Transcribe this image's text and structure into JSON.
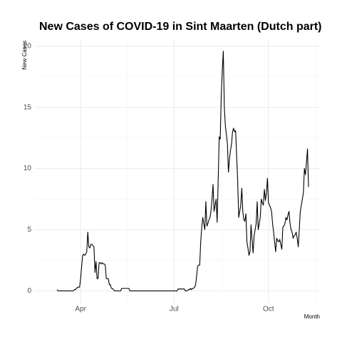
{
  "chart_data": {
    "type": "line",
    "title": "New Cases of COVID-19 in Sint Maarten (Dutch part)",
    "y_label": "New Cases",
    "x_label": "Month",
    "categories": [
      null,
      null,
      null,
      null,
      null,
      null,
      null,
      null,
      null,
      null,
      null,
      null,
      null,
      null,
      null,
      null,
      null,
      null,
      null,
      null,
      null,
      null,
      null,
      "Apr",
      null,
      null,
      null,
      null,
      null,
      null,
      null,
      null,
      null,
      null,
      null,
      null,
      null,
      null,
      null,
      null,
      null,
      null,
      null,
      null,
      null,
      null,
      null,
      null,
      null,
      null,
      null,
      null,
      null,
      null,
      null,
      null,
      null,
      null,
      null,
      null,
      null,
      null,
      null,
      null,
      null,
      null,
      null,
      null,
      null,
      null,
      null,
      null,
      null,
      null,
      null,
      null,
      null,
      null,
      null,
      null,
      null,
      null,
      null,
      null,
      null,
      null,
      null,
      null,
      null,
      null,
      null,
      null,
      null,
      null,
      null,
      null,
      null,
      null,
      null,
      null,
      null,
      null,
      null,
      null,
      null,
      null,
      null,
      null,
      null,
      null,
      null,
      null,
      null,
      null,
      "Jul",
      null,
      null,
      null,
      null,
      null,
      null,
      null,
      null,
      null,
      null,
      null,
      null,
      null,
      null,
      null,
      null,
      null,
      null,
      null,
      null,
      null,
      null,
      null,
      null,
      null,
      null,
      null,
      null,
      null,
      null,
      null,
      null,
      null,
      null,
      null,
      null,
      null,
      null,
      null,
      null,
      null,
      null,
      null,
      null,
      null,
      null,
      null,
      null,
      null,
      null,
      null,
      null,
      null,
      null,
      null,
      null,
      null,
      null,
      null,
      null,
      null,
      null,
      null,
      null,
      null,
      null,
      null,
      null,
      null,
      null,
      null,
      null,
      null,
      null,
      null,
      null,
      null,
      null,
      null,
      null,
      null,
      null,
      null,
      null,
      null,
      null,
      null,
      null,
      null,
      null,
      null,
      "Oct",
      null,
      null,
      null,
      null,
      null,
      null,
      null,
      null,
      null,
      null,
      null,
      null,
      null,
      null,
      null,
      null,
      null,
      null,
      null,
      null,
      null,
      null,
      null,
      null,
      null,
      null,
      null,
      null,
      null,
      null,
      null,
      null,
      null,
      null,
      null,
      null,
      null,
      null,
      null
    ],
    "series": [
      {
        "name": "New Cases",
        "color": "#000000",
        "values": [
          0.1,
          0,
          0,
          0,
          0,
          0,
          0,
          0,
          0,
          0,
          0,
          0,
          0,
          0,
          0,
          0,
          0,
          0.1,
          0.1,
          0.2,
          0.3,
          0.3,
          0.3,
          1.0,
          2.0,
          2.9,
          3.0,
          2.9,
          3.0,
          3.2,
          4.8,
          3.6,
          3.5,
          3.8,
          3.8,
          3.7,
          3.6,
          1.5,
          2.4,
          1.0,
          1.0,
          2.3,
          2.3,
          2.2,
          2.3,
          2.2,
          2.2,
          2.1,
          1.0,
          1.0,
          1.0,
          0.5,
          0.5,
          0.2,
          0.2,
          0.1,
          0,
          0,
          0,
          0,
          0,
          0,
          0,
          0.2,
          0.2,
          0.2,
          0.2,
          0.2,
          0.2,
          0.2,
          0.2,
          0,
          0,
          0,
          0,
          0,
          0,
          0,
          0,
          0,
          0,
          0,
          0,
          0,
          0,
          0,
          0,
          0,
          0,
          0,
          0,
          0,
          0,
          0,
          0,
          0,
          0,
          0,
          0,
          0,
          0,
          0,
          0,
          0,
          0,
          0,
          0,
          0,
          0,
          0,
          0,
          0,
          0,
          0,
          0,
          0,
          0,
          0,
          0.15,
          0.15,
          0.15,
          0.15,
          0.15,
          0.15,
          0.15,
          0,
          0,
          0,
          0.1,
          0.1,
          0.2,
          0.1,
          0.2,
          0.2,
          0.3,
          0.5,
          1.2,
          2.0,
          2.1,
          2.1,
          4.0,
          5.2,
          6.0,
          5.5,
          5.0,
          7.3,
          5.3,
          5.5,
          5.8,
          6.0,
          6.5,
          7.5,
          8.7,
          6.5,
          7.0,
          7.5,
          5.6,
          9.0,
          12.6,
          12.4,
          16.0,
          18.0,
          19.6,
          15.0,
          13.5,
          12.8,
          12.0,
          9.7,
          10.8,
          11.5,
          12.0,
          13.0,
          13.3,
          13.0,
          13.1,
          11.0,
          9.0,
          6.0,
          6.5,
          7.0,
          8.4,
          6.5,
          5.8,
          5.7,
          6.3,
          4.0,
          3.5,
          2.9,
          3.2,
          5.4,
          4.2,
          3.1,
          4.5,
          5.0,
          5.5,
          7.3,
          5.0,
          5.5,
          6.0,
          7.5,
          7.2,
          7.0,
          8.3,
          7.4,
          8.0,
          9.2,
          7.2,
          7.0,
          6.8,
          6.5,
          5.5,
          4.8,
          4.0,
          3.2,
          4.3,
          4.1,
          4.0,
          4.2,
          3.8,
          3.4,
          5.2,
          5.3,
          5.5,
          6.0,
          5.8,
          6.2,
          6.5,
          5.5,
          5.0,
          4.8,
          4.3,
          4.5,
          4.6,
          4.8,
          4.3,
          3.6,
          5.0,
          6.5,
          7.0,
          7.5,
          8.0,
          10.0,
          9.5,
          10.5,
          11.6,
          8.5
        ]
      }
    ],
    "ylim": [
      -0.98,
      20.58
    ],
    "yticks": [
      0,
      5,
      10,
      15,
      20
    ],
    "grid": true
  }
}
